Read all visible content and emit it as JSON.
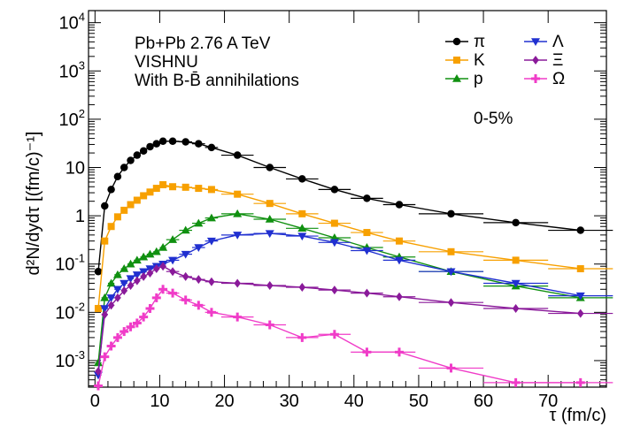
{
  "chart_data": {
    "type": "line",
    "title": "",
    "xlabel": "τ (fm/c)",
    "ylabel": "d²N/dydτ [(fm/c)⁻¹]",
    "xlim": [
      -1,
      79
    ],
    "ylim_log10": [
      -3.55,
      4.25
    ],
    "yscale": "log",
    "x_ticks": [
      "0",
      "10",
      "20",
      "30",
      "40",
      "50",
      "60",
      "70"
    ],
    "y_ticks": [
      {
        "base": "10",
        "exp": "4"
      },
      {
        "base": "10",
        "exp": "3"
      },
      {
        "base": "10",
        "exp": "2"
      },
      {
        "base": "10",
        "exp": ""
      },
      {
        "base": "1",
        "exp": ""
      },
      {
        "base": "10",
        "exp": "-1"
      },
      {
        "base": "10",
        "exp": "-2"
      },
      {
        "base": "10",
        "exp": "-3"
      }
    ],
    "annotations": [
      "Pb+Pb 2.76 A TeV",
      "VISHNU",
      "With B-B̄ annihilations",
      "0-5%"
    ],
    "legend_position": "top-right",
    "series": [
      {
        "name": "π",
        "color": "#000000",
        "marker": "circle",
        "x": [
          0.5,
          1.5,
          2.5,
          3.5,
          4.5,
          5.5,
          6.5,
          7.5,
          8.5,
          9.5,
          10.5,
          12,
          14,
          16,
          18,
          22,
          27,
          32,
          37,
          42,
          47,
          55,
          65,
          75
        ],
        "y": [
          0.07,
          1.6,
          3.5,
          6.5,
          10,
          14,
          18,
          22,
          27,
          31,
          35,
          35,
          34,
          31,
          26,
          18,
          10,
          5.8,
          3.5,
          2.3,
          1.7,
          1.1,
          0.72,
          0.5
        ]
      },
      {
        "name": "K",
        "color": "#f7a000",
        "marker": "square",
        "x": [
          0.5,
          1.5,
          2.5,
          3.5,
          4.5,
          5.5,
          6.5,
          7.5,
          8.5,
          9.5,
          10.5,
          12,
          14,
          16,
          18,
          22,
          27,
          32,
          37,
          42,
          47,
          55,
          65,
          75
        ],
        "y": [
          0.012,
          0.3,
          0.6,
          0.95,
          1.3,
          1.7,
          2.1,
          2.6,
          3.1,
          3.7,
          4.4,
          4.0,
          3.9,
          3.7,
          3.5,
          2.8,
          1.8,
          1.1,
          0.7,
          0.45,
          0.3,
          0.18,
          0.12,
          0.08
        ]
      },
      {
        "name": "p",
        "color": "#109010",
        "marker": "triangle-up",
        "x": [
          0.5,
          1.5,
          2.5,
          3.5,
          4.5,
          5.5,
          6.5,
          7.5,
          8.5,
          9.5,
          10.5,
          12,
          14,
          16,
          18,
          22,
          27,
          32,
          37,
          42,
          47,
          55,
          65,
          75
        ],
        "y": [
          0.0009,
          0.02,
          0.04,
          0.06,
          0.08,
          0.1,
          0.12,
          0.14,
          0.16,
          0.18,
          0.22,
          0.32,
          0.5,
          0.7,
          0.9,
          1.1,
          0.85,
          0.55,
          0.35,
          0.22,
          0.14,
          0.07,
          0.035,
          0.02
        ]
      },
      {
        "name": "Λ",
        "color": "#2030d0",
        "marker": "triangle-down",
        "x": [
          0.5,
          1.5,
          2.5,
          3.5,
          4.5,
          5.5,
          6.5,
          7.5,
          8.5,
          9.5,
          10.5,
          12,
          14,
          16,
          18,
          22,
          27,
          32,
          37,
          42,
          47,
          55,
          65,
          75
        ],
        "y": [
          0.0005,
          0.012,
          0.02,
          0.03,
          0.04,
          0.05,
          0.06,
          0.07,
          0.08,
          0.09,
          0.1,
          0.12,
          0.16,
          0.22,
          0.3,
          0.4,
          0.43,
          0.38,
          0.28,
          0.19,
          0.12,
          0.07,
          0.04,
          0.022
        ]
      },
      {
        "name": "Ξ",
        "color": "#8a1a9a",
        "marker": "diamond",
        "x": [
          0.5,
          1.5,
          2.5,
          3.5,
          4.5,
          5.5,
          6.5,
          7.5,
          8.5,
          9.5,
          10.5,
          12,
          14,
          16,
          18,
          22,
          27,
          32,
          37,
          42,
          47,
          55,
          65,
          75
        ],
        "y": [
          0.0006,
          0.009,
          0.014,
          0.02,
          0.028,
          0.036,
          0.045,
          0.055,
          0.065,
          0.08,
          0.09,
          0.07,
          0.055,
          0.048,
          0.043,
          0.04,
          0.036,
          0.033,
          0.029,
          0.025,
          0.021,
          0.016,
          0.012,
          0.0095
        ]
      },
      {
        "name": "Ω",
        "color": "#f03cc8",
        "marker": "star",
        "x": [
          0.5,
          1.5,
          2.5,
          3.5,
          4.5,
          5.5,
          6.5,
          7.5,
          8.5,
          9.5,
          10.5,
          12,
          14,
          16,
          18,
          22,
          27,
          32,
          37,
          42,
          47,
          55,
          65,
          75
        ],
        "y": [
          0.0003,
          0.0012,
          0.002,
          0.003,
          0.004,
          0.005,
          0.006,
          0.008,
          0.012,
          0.02,
          0.03,
          0.025,
          0.018,
          0.014,
          0.01,
          0.008,
          0.0055,
          0.003,
          0.0035,
          0.0015,
          0.0015,
          0.0007,
          0.00035,
          0.00035
        ]
      }
    ]
  }
}
